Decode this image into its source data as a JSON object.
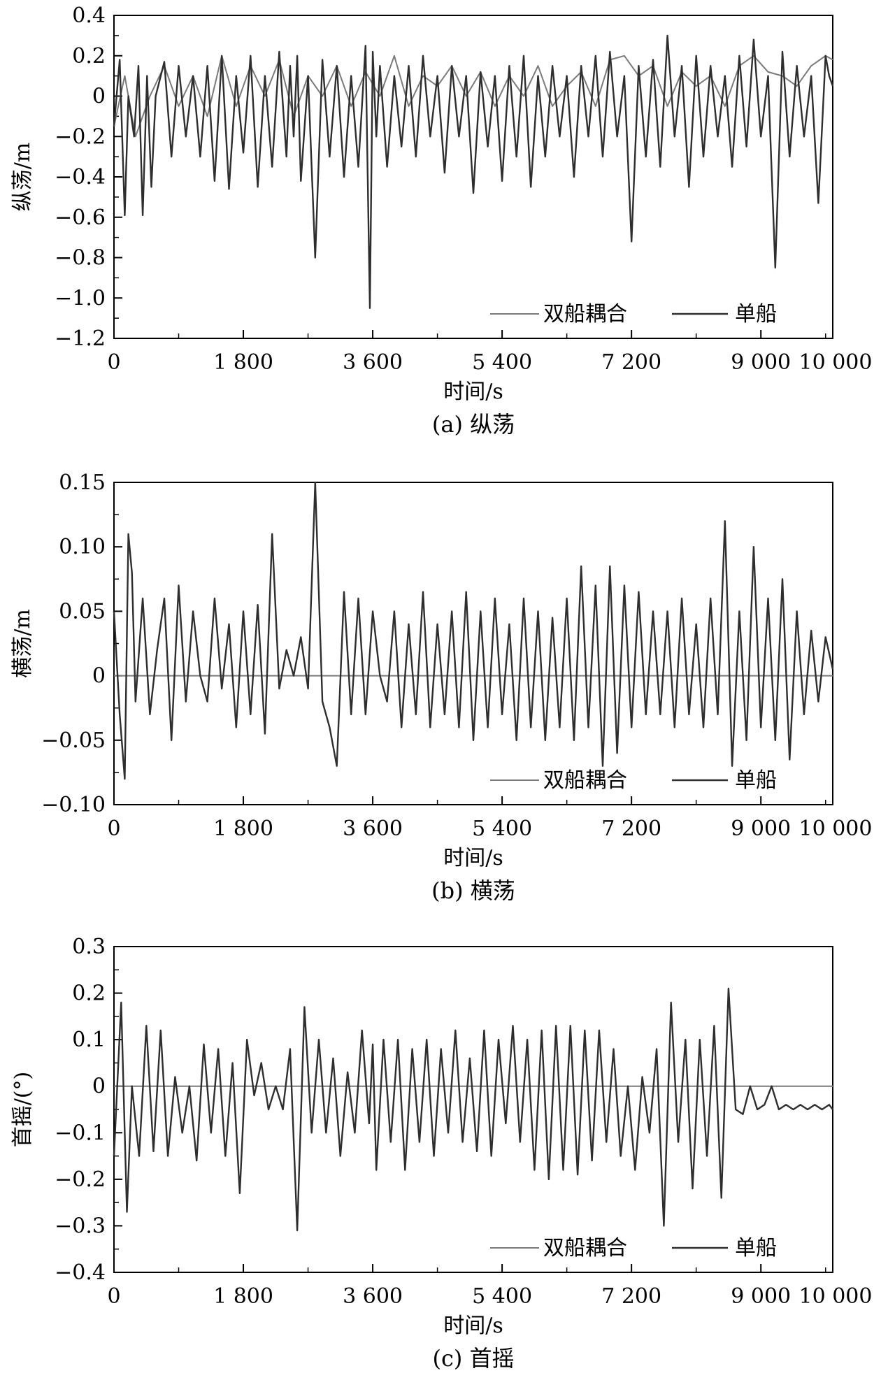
{
  "figure": {
    "colors": {
      "coupled": "#7a7a7a",
      "single": "#2e2e2e",
      "axis": "#000000"
    }
  },
  "chart_data": [
    {
      "type": "line",
      "caption": "(a) 纵荡",
      "xlabel": "时间/s",
      "ylabel": "纵荡/m",
      "xlim": [
        0,
        10000
      ],
      "ylim": [
        -1.2,
        0.4
      ],
      "xticks": [
        0,
        1800,
        3600,
        5400,
        7200,
        9000,
        10000
      ],
      "xtick_labels": [
        "0",
        "1 800",
        "3 600",
        "5 400",
        "7 200",
        "9 000",
        "10 000"
      ],
      "yticks": [
        0.4,
        0.2,
        0,
        -0.2,
        -0.4,
        -0.6,
        -0.8,
        -1.0,
        -1.2
      ],
      "ytick_labels": [
        "0.4",
        "0.2",
        "0",
        "−0.2",
        "−0.4",
        "−0.6",
        "−0.8",
        "−1.0",
        "−1.2"
      ],
      "legend": {
        "position": "bottom-right",
        "entries": [
          "双船耦合",
          "单船"
        ]
      },
      "series": [
        {
          "name": "双船耦合",
          "color": "#7a7a7a",
          "x": [
            0,
            150,
            300,
            500,
            700,
            900,
            1100,
            1300,
            1500,
            1700,
            1900,
            2100,
            2300,
            2500,
            2700,
            2900,
            3100,
            3300,
            3500,
            3700,
            3900,
            4100,
            4300,
            4500,
            4700,
            4900,
            5100,
            5300,
            5500,
            5700,
            5900,
            6100,
            6300,
            6500,
            6700,
            6900,
            7100,
            7300,
            7500,
            7700,
            7900,
            8100,
            8300,
            8500,
            8700,
            8900,
            9100,
            9300,
            9500,
            9700,
            9900,
            10000
          ],
          "y": [
            -0.15,
            0.1,
            -0.2,
            0.0,
            0.15,
            -0.05,
            0.1,
            -0.1,
            0.2,
            -0.05,
            0.15,
            0.0,
            0.18,
            -0.1,
            0.1,
            0.0,
            0.15,
            -0.05,
            0.12,
            0.0,
            0.2,
            -0.05,
            0.1,
            0.05,
            0.15,
            0.0,
            0.12,
            -0.05,
            0.1,
            0.0,
            0.15,
            -0.05,
            0.05,
            0.12,
            -0.05,
            0.18,
            0.2,
            0.1,
            0.15,
            -0.05,
            0.12,
            0.05,
            0.1,
            -0.05,
            0.15,
            0.2,
            0.12,
            0.1,
            0.05,
            0.15,
            0.2,
            0.18
          ]
        },
        {
          "name": "单船",
          "color": "#2e2e2e",
          "x": [
            0,
            80,
            150,
            200,
            280,
            340,
            400,
            460,
            520,
            580,
            700,
            800,
            900,
            1000,
            1100,
            1200,
            1300,
            1400,
            1500,
            1600,
            1700,
            1800,
            1900,
            2000,
            2100,
            2200,
            2300,
            2400,
            2450,
            2500,
            2550,
            2600,
            2700,
            2800,
            2900,
            3000,
            3100,
            3200,
            3300,
            3400,
            3500,
            3560,
            3600,
            3650,
            3700,
            3800,
            3900,
            4000,
            4100,
            4200,
            4300,
            4400,
            4500,
            4600,
            4700,
            4800,
            4900,
            5000,
            5100,
            5200,
            5300,
            5400,
            5500,
            5600,
            5700,
            5800,
            5900,
            6000,
            6100,
            6200,
            6300,
            6400,
            6500,
            6600,
            6700,
            6800,
            6900,
            7000,
            7100,
            7200,
            7300,
            7400,
            7500,
            7600,
            7700,
            7800,
            7900,
            8000,
            8100,
            8200,
            8300,
            8400,
            8500,
            8600,
            8700,
            8800,
            8900,
            9000,
            9100,
            9200,
            9300,
            9400,
            9500,
            9600,
            9700,
            9800,
            9900,
            9950,
            10000
          ],
          "y": [
            -0.15,
            0.18,
            -0.59,
            0.0,
            -0.2,
            0.15,
            -0.59,
            0.1,
            -0.45,
            0.0,
            0.17,
            -0.3,
            0.15,
            -0.2,
            0.1,
            -0.3,
            0.15,
            -0.42,
            0.2,
            -0.46,
            0.1,
            -0.28,
            0.2,
            -0.45,
            0.1,
            -0.35,
            0.22,
            -0.3,
            0.15,
            -0.2,
            0.2,
            -0.42,
            0.1,
            -0.8,
            0.18,
            -0.3,
            0.15,
            -0.4,
            0.1,
            -0.35,
            0.25,
            -1.05,
            0.22,
            -0.2,
            0.15,
            -0.35,
            0.1,
            -0.25,
            0.15,
            -0.3,
            0.2,
            -0.2,
            0.1,
            -0.38,
            0.15,
            -0.2,
            0.1,
            -0.48,
            0.12,
            -0.25,
            0.1,
            -0.42,
            0.15,
            -0.3,
            0.2,
            -0.45,
            0.1,
            -0.3,
            0.15,
            -0.2,
            0.1,
            -0.4,
            0.15,
            -0.2,
            0.2,
            -0.3,
            0.22,
            -0.2,
            0.1,
            -0.72,
            0.15,
            -0.3,
            0.18,
            -0.35,
            0.3,
            -0.2,
            0.15,
            -0.45,
            0.2,
            -0.3,
            0.15,
            -0.2,
            0.1,
            -0.35,
            0.2,
            -0.25,
            0.28,
            -0.2,
            0.1,
            -0.85,
            0.22,
            -0.3,
            0.15,
            -0.2,
            0.1,
            -0.53,
            0.2,
            0.1,
            0.05
          ]
        }
      ]
    },
    {
      "type": "line",
      "caption": "(b) 横荡",
      "xlabel": "时间/s",
      "ylabel": "横荡/m",
      "xlim": [
        0,
        10000
      ],
      "ylim": [
        -0.1,
        0.15
      ],
      "xticks": [
        0,
        1800,
        3600,
        5400,
        7200,
        9000,
        10000
      ],
      "xtick_labels": [
        "0",
        "1 800",
        "3 600",
        "5 400",
        "7 200",
        "9 000",
        "10 000"
      ],
      "yticks": [
        0.15,
        0.1,
        0.05,
        0,
        -0.05,
        -0.1
      ],
      "ytick_labels": [
        "0.15",
        "0.10",
        "0.05",
        "0",
        "−0.05",
        "−0.10"
      ],
      "legend": {
        "position": "bottom-right",
        "entries": [
          "双船耦合",
          "单船"
        ]
      },
      "series": [
        {
          "name": "双船耦合",
          "color": "#7a7a7a",
          "x": [
            0,
            10000
          ],
          "y": [
            0.0,
            0.0
          ]
        },
        {
          "name": "单船",
          "color": "#2e2e2e",
          "x": [
            0,
            80,
            150,
            200,
            250,
            300,
            400,
            500,
            600,
            700,
            800,
            900,
            1000,
            1100,
            1200,
            1300,
            1400,
            1500,
            1600,
            1700,
            1800,
            1900,
            2000,
            2100,
            2200,
            2300,
            2400,
            2500,
            2600,
            2700,
            2800,
            2900,
            3000,
            3100,
            3200,
            3300,
            3400,
            3500,
            3600,
            3700,
            3800,
            3900,
            4000,
            4100,
            4200,
            4300,
            4400,
            4500,
            4600,
            4700,
            4800,
            4900,
            5000,
            5100,
            5200,
            5300,
            5400,
            5500,
            5600,
            5700,
            5800,
            5900,
            6000,
            6100,
            6200,
            6300,
            6400,
            6500,
            6600,
            6700,
            6800,
            6900,
            7000,
            7100,
            7200,
            7300,
            7400,
            7500,
            7600,
            7700,
            7800,
            7900,
            8000,
            8100,
            8200,
            8300,
            8400,
            8500,
            8600,
            8700,
            8800,
            8900,
            9000,
            9100,
            9200,
            9300,
            9400,
            9500,
            9600,
            9700,
            9800,
            9900,
            10000
          ],
          "y": [
            0.05,
            -0.03,
            -0.08,
            0.11,
            0.08,
            -0.02,
            0.06,
            -0.03,
            0.02,
            0.06,
            -0.05,
            0.07,
            -0.02,
            0.05,
            0.0,
            -0.02,
            0.06,
            -0.01,
            0.04,
            -0.04,
            0.05,
            -0.03,
            0.055,
            -0.045,
            0.11,
            -0.01,
            0.02,
            0.0,
            0.03,
            -0.01,
            0.15,
            -0.02,
            -0.04,
            -0.07,
            0.065,
            -0.03,
            0.06,
            -0.03,
            0.05,
            0.0,
            -0.02,
            0.05,
            -0.04,
            0.04,
            -0.03,
            0.065,
            -0.04,
            0.04,
            -0.03,
            0.05,
            -0.04,
            0.065,
            -0.05,
            0.05,
            -0.04,
            0.06,
            -0.03,
            0.04,
            -0.05,
            0.06,
            -0.04,
            0.05,
            -0.05,
            0.045,
            -0.04,
            0.06,
            -0.05,
            0.085,
            -0.04,
            0.07,
            -0.07,
            0.085,
            -0.06,
            0.07,
            -0.04,
            0.065,
            -0.03,
            0.05,
            -0.03,
            0.05,
            -0.04,
            0.06,
            -0.03,
            0.04,
            -0.04,
            0.06,
            -0.03,
            0.12,
            -0.07,
            0.05,
            -0.05,
            0.1,
            -0.04,
            0.06,
            -0.05,
            0.075,
            -0.065,
            0.05,
            -0.03,
            0.035,
            -0.02,
            0.03,
            0.005
          ]
        }
      ]
    },
    {
      "type": "line",
      "caption": "(c) 首摇",
      "xlabel": "时间/s",
      "ylabel": "首摇/(°)",
      "xlim": [
        0,
        10000
      ],
      "ylim": [
        -0.4,
        0.3
      ],
      "xticks": [
        0,
        1800,
        3600,
        5400,
        7200,
        9000,
        10000
      ],
      "xtick_labels": [
        "0",
        "1 800",
        "3 600",
        "5 400",
        "7 200",
        "9 000",
        "10 000"
      ],
      "yticks": [
        0.3,
        0.2,
        0.1,
        0,
        -0.1,
        -0.2,
        -0.3,
        -0.4
      ],
      "ytick_labels": [
        "0.3",
        "0.2",
        "0.1",
        "0",
        "−0.1",
        "−0.2",
        "−0.3",
        "−0.4"
      ],
      "legend": {
        "position": "bottom-right",
        "entries": [
          "双船耦合",
          "单船"
        ]
      },
      "series": [
        {
          "name": "双船耦合",
          "color": "#7a7a7a",
          "x": [
            0,
            10000
          ],
          "y": [
            0.0,
            0.0
          ]
        },
        {
          "name": "单船",
          "color": "#2e2e2e",
          "x": [
            0,
            100,
            180,
            250,
            350,
            450,
            550,
            650,
            750,
            850,
            950,
            1050,
            1150,
            1250,
            1350,
            1450,
            1550,
            1650,
            1750,
            1850,
            1950,
            2050,
            2150,
            2250,
            2350,
            2450,
            2550,
            2650,
            2750,
            2850,
            2950,
            3050,
            3150,
            3250,
            3350,
            3450,
            3550,
            3600,
            3650,
            3750,
            3850,
            3950,
            4050,
            4150,
            4250,
            4350,
            4450,
            4550,
            4650,
            4750,
            4850,
            4950,
            5050,
            5150,
            5250,
            5350,
            5450,
            5550,
            5650,
            5750,
            5850,
            5950,
            6050,
            6150,
            6250,
            6350,
            6450,
            6550,
            6650,
            6750,
            6850,
            6950,
            7050,
            7150,
            7250,
            7350,
            7450,
            7550,
            7650,
            7750,
            7850,
            7950,
            8050,
            8150,
            8250,
            8350,
            8450,
            8550,
            8650,
            8750,
            8850,
            8950,
            9050,
            9150,
            9250,
            9350,
            9450,
            9550,
            9650,
            9750,
            9850,
            9950,
            10000
          ],
          "y": [
            -0.15,
            0.18,
            -0.27,
            0.0,
            -0.15,
            0.13,
            -0.14,
            0.12,
            -0.15,
            0.02,
            -0.1,
            0.0,
            -0.16,
            0.09,
            -0.1,
            0.08,
            -0.15,
            0.05,
            -0.23,
            0.1,
            -0.02,
            0.05,
            -0.05,
            0.0,
            -0.05,
            0.08,
            -0.31,
            0.17,
            -0.1,
            0.1,
            -0.1,
            0.06,
            -0.15,
            0.03,
            -0.1,
            0.12,
            -0.08,
            0.09,
            -0.18,
            0.1,
            -0.12,
            0.1,
            -0.18,
            0.08,
            -0.12,
            0.1,
            -0.15,
            0.08,
            -0.1,
            0.12,
            -0.12,
            0.06,
            -0.14,
            0.12,
            -0.15,
            0.1,
            -0.08,
            0.13,
            -0.12,
            0.1,
            -0.18,
            0.12,
            -0.2,
            0.13,
            -0.18,
            0.13,
            -0.19,
            0.12,
            -0.16,
            0.12,
            -0.12,
            0.08,
            -0.15,
            0.0,
            -0.18,
            0.02,
            -0.1,
            0.08,
            -0.3,
            0.18,
            -0.12,
            0.1,
            -0.22,
            0.1,
            -0.15,
            0.13,
            -0.24,
            0.21,
            -0.05,
            -0.06,
            0.0,
            -0.05,
            -0.04,
            0.0,
            -0.05,
            -0.04,
            -0.05,
            -0.04,
            -0.05,
            -0.04,
            -0.05,
            -0.04,
            -0.05
          ]
        }
      ]
    }
  ]
}
